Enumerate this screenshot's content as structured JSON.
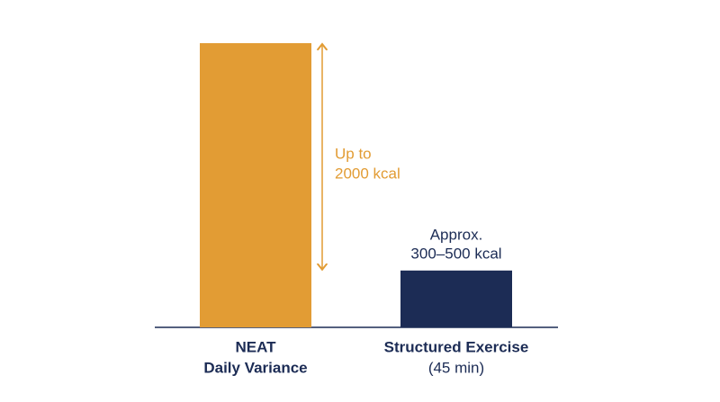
{
  "chart_data": {
    "type": "bar",
    "categories": [
      [
        "NEAT",
        "Daily Variance"
      ],
      [
        "Structured Exercise",
        "(45 min)"
      ]
    ],
    "values": [
      2000,
      400
    ],
    "value_labels": [
      [
        "Up to",
        "2000 kcal"
      ],
      [
        "Approx.",
        "300–500 kcal"
      ]
    ],
    "colors": [
      "#e29c34",
      "#1c2c55"
    ]
  }
}
